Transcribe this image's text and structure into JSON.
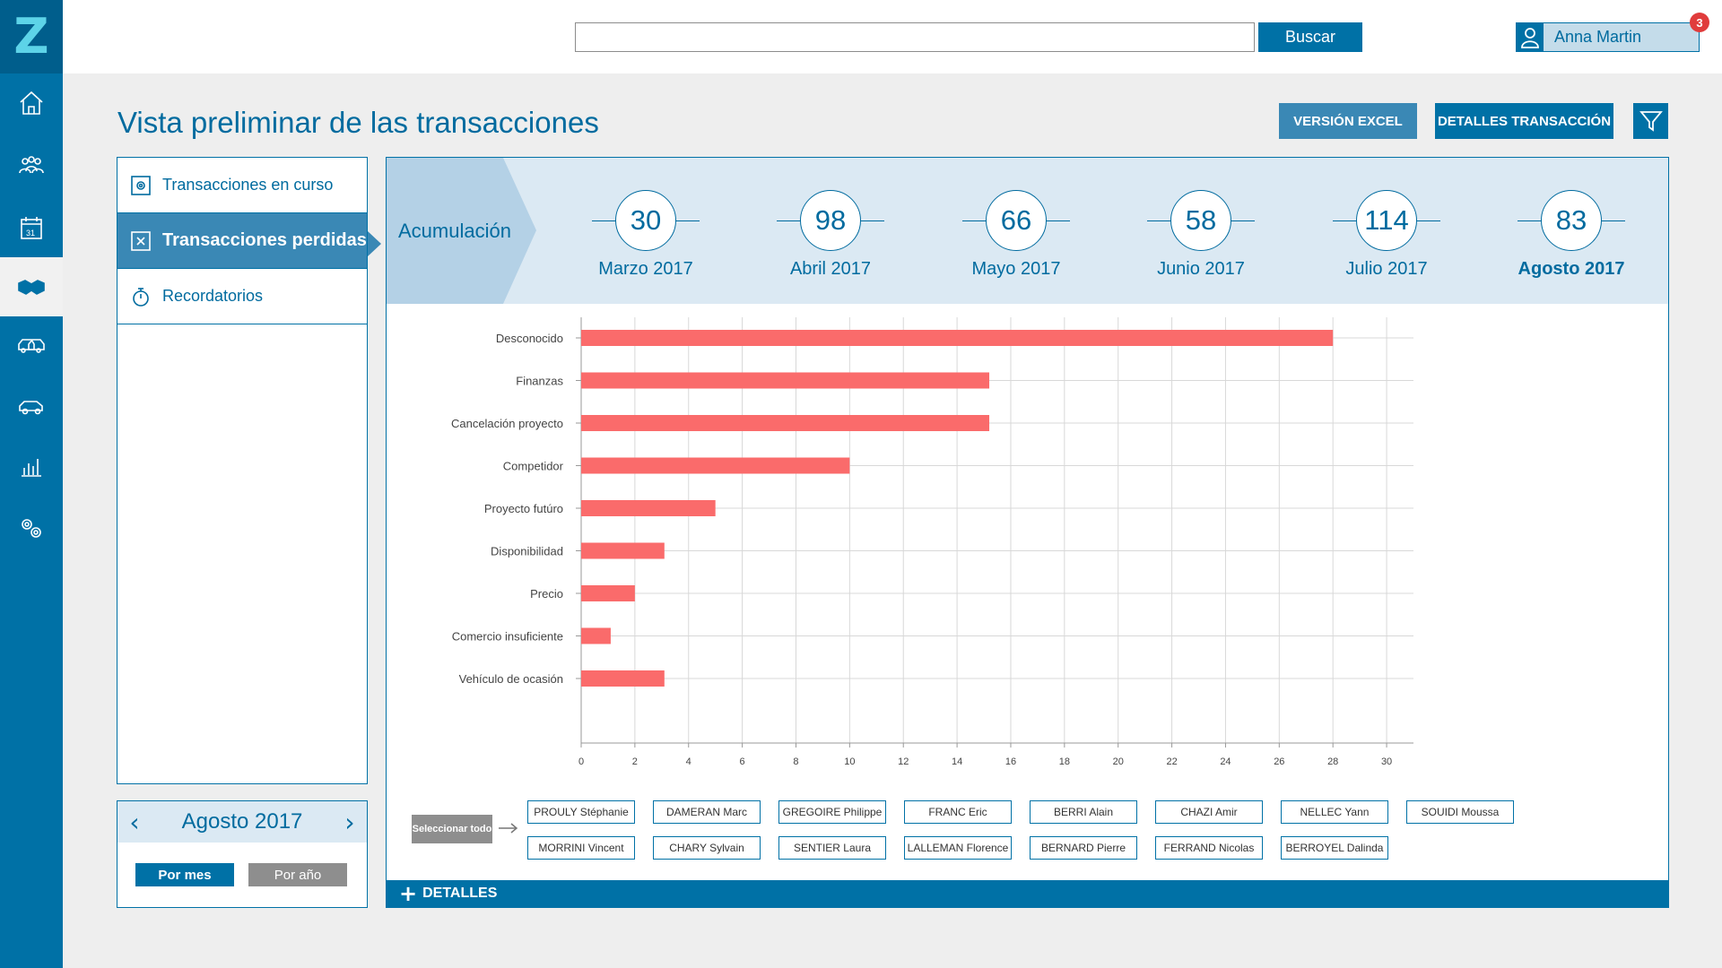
{
  "app": {
    "logo_letter": "Z"
  },
  "nav": [
    {
      "name": "home-icon",
      "icon": "home"
    },
    {
      "name": "people-icon",
      "icon": "people"
    },
    {
      "name": "calendar-icon",
      "icon": "calendar",
      "text": "31"
    },
    {
      "name": "handshake-icon",
      "icon": "handshake",
      "active": true
    },
    {
      "name": "vehicles-icon",
      "icon": "vehicles"
    },
    {
      "name": "car-icon",
      "icon": "car"
    },
    {
      "name": "chart-icon",
      "icon": "chart"
    },
    {
      "name": "settings-icon",
      "icon": "settings"
    }
  ],
  "header": {
    "search_value": "",
    "search_button": "Buscar",
    "user_name": "Anna Martin",
    "notifications": "3"
  },
  "page": {
    "title": "Vista preliminar de las transacciones",
    "btn_excel": "VERSIÓN EXCEL",
    "btn_details": "DETALLES TRANSACCIÓN"
  },
  "side_menu": [
    {
      "label": "Transacciones en curso",
      "icon": "gear-doc-icon",
      "active": false
    },
    {
      "label": "Transacciones perdidas",
      "icon": "x-doc-icon",
      "active": true
    },
    {
      "label": "Recordatorios",
      "icon": "stopwatch-icon",
      "active": false
    }
  ],
  "period": {
    "label": "Agosto 2017",
    "prev": "‹",
    "next": "›",
    "mode_month": "Por mes",
    "mode_year": "Por año"
  },
  "timeline": {
    "accum_label": "Acumulación",
    "items": [
      {
        "value": "30",
        "label": "Marzo 2017",
        "active": false
      },
      {
        "value": "98",
        "label": "Abril 2017",
        "active": false
      },
      {
        "value": "66",
        "label": "Mayo 2017",
        "active": false
      },
      {
        "value": "58",
        "label": "Junio 2017",
        "active": false
      },
      {
        "value": "114",
        "label": "Julio 2017",
        "active": false
      },
      {
        "value": "83",
        "label": "Agosto 2017",
        "active": true
      }
    ]
  },
  "chart_data": {
    "type": "bar",
    "orientation": "horizontal",
    "categories": [
      "Desconocido",
      "Finanzas",
      "Cancelación proyecto",
      "Competidor",
      "Proyecto futúro",
      "Disponibilidad",
      "Precio",
      "Comercio insuficiente",
      "Vehículo de ocasión"
    ],
    "values": [
      28,
      15.2,
      15.2,
      10,
      5,
      3.1,
      2,
      1.1,
      3.1
    ],
    "xlim": [
      0,
      31
    ],
    "xticks": [
      0,
      2,
      4,
      6,
      8,
      10,
      12,
      14,
      16,
      18,
      20,
      22,
      24,
      26,
      28,
      30
    ],
    "grid": true,
    "color": "#fa6b6b"
  },
  "reps": {
    "select_all": "Seleccionar todo",
    "row1": [
      "PROULY Stéphanie",
      "DAMERAN Marc",
      "GREGOIRE Philippe",
      "FRANC Eric",
      "BERRI Alain",
      "CHAZI Amir",
      "NELLEC Yann",
      "SOUIDI Moussa"
    ],
    "row2": [
      "MORRINI Vincent",
      "CHARY Sylvain",
      "SENTIER Laura",
      "LALLEMAN Florence",
      "BERNARD Pierre",
      "FERRAND Nicolas",
      "BERROYEL Dalinda"
    ]
  },
  "footer": {
    "label": "DETALLES"
  }
}
